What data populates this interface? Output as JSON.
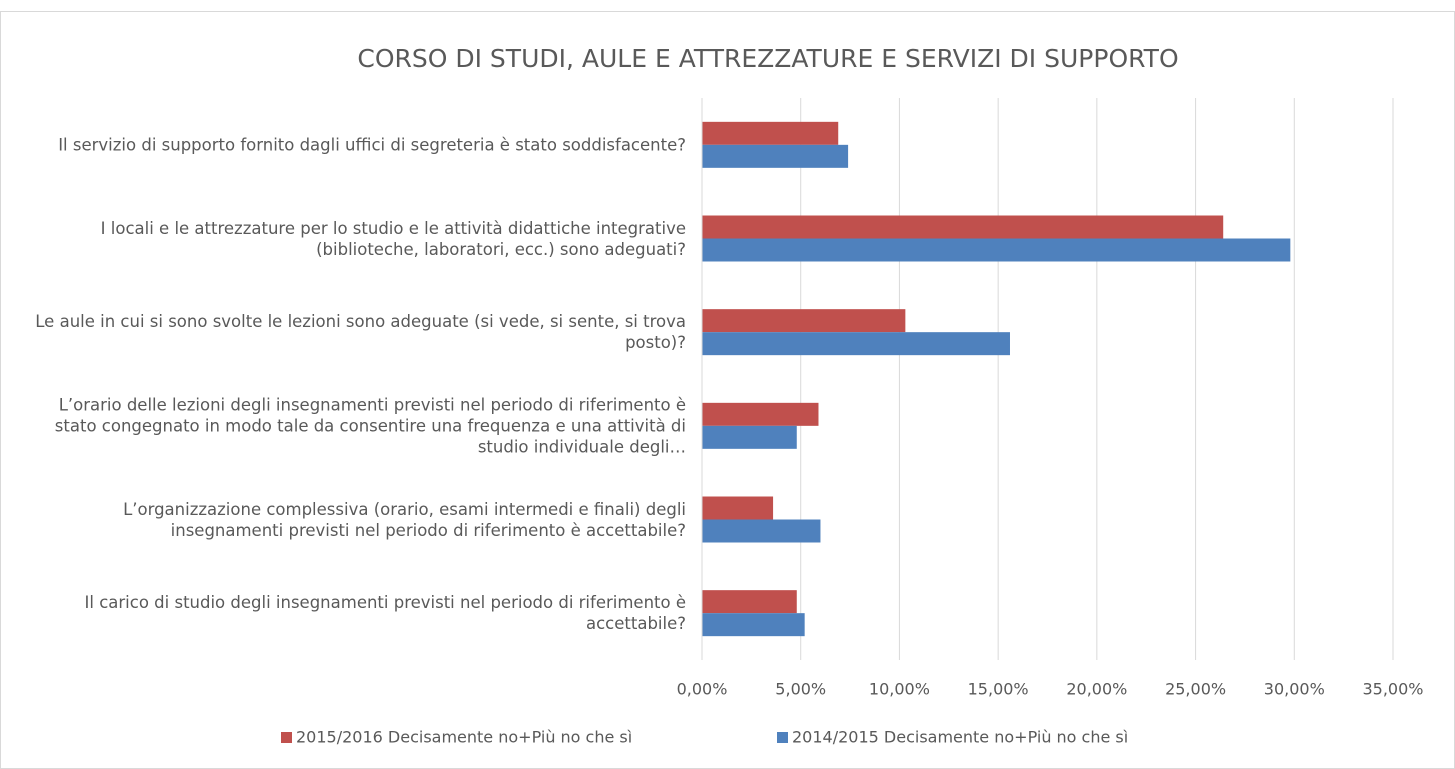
{
  "chart_data": {
    "type": "barh",
    "title": "CORSO DI STUDI, AULE E ATTREZZATURE E SERVIZI DI SUPPORTO",
    "categories": [
      "Il servizio di supporto fornito dagli uffici di segreteria è stato soddisfacente?",
      "I locali e le attrezzature per lo studio e le attività didattiche integrative (biblioteche, laboratori, ecc.) sono adeguati?",
      "Le aule in cui si sono svolte le lezioni sono adeguate (si vede, si sente, si trova posto)?",
      "L’orario delle lezioni degli insegnamenti previsti nel periodo di riferimento è stato congegnato in modo tale da consentire una frequenza e una attività di studio individuale degli…",
      "L’organizzazione complessiva (orario, esami intermedi e finali) degli insegnamenti previsti nel periodo di riferimento è accettabile?",
      "Il carico di studio degli insegnamenti previsti nel periodo di riferimento è accettabile?"
    ],
    "series": [
      {
        "name": "2015/2016 Decisamente no+Più no che sì",
        "color": "#c0504d",
        "values": [
          6.9,
          26.4,
          10.3,
          5.9,
          3.6,
          4.8
        ]
      },
      {
        "name": "2014/2015 Decisamente no+Più no che sì",
        "color": "#4f81bd",
        "values": [
          7.4,
          29.8,
          15.6,
          4.8,
          6.0,
          5.2
        ]
      }
    ],
    "xlim": [
      0,
      35
    ],
    "xticks": [
      {
        "value": 0,
        "label": "0,00%"
      },
      {
        "value": 5,
        "label": "5,00%"
      },
      {
        "value": 10,
        "label": "10,00%"
      },
      {
        "value": 15,
        "label": "15,00%"
      },
      {
        "value": 20,
        "label": "20,00%"
      },
      {
        "value": 25,
        "label": "25,00%"
      },
      {
        "value": 30,
        "label": "30,00%"
      },
      {
        "value": 35,
        "label": "35,00%"
      }
    ],
    "grid": true,
    "legend": "bottom"
  }
}
